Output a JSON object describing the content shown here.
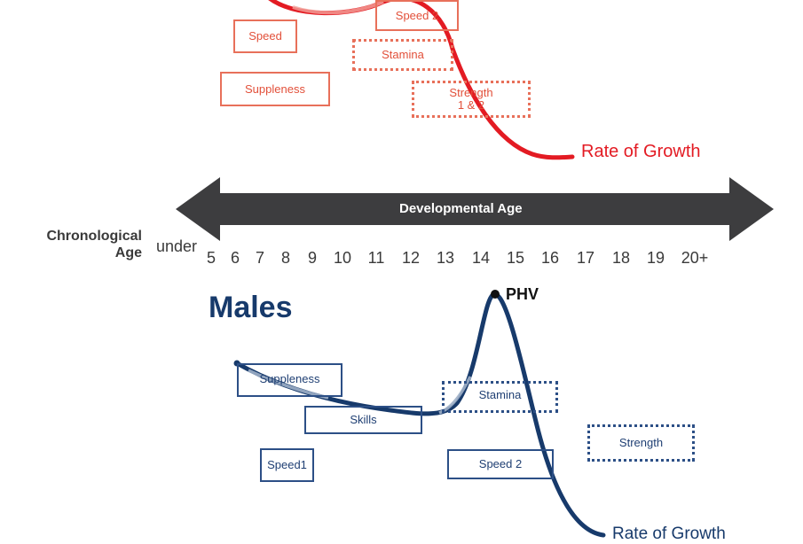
{
  "females_section": {
    "boxes": {
      "speed": "Speed",
      "speed2": "Speed 2",
      "stamina": "Stamina",
      "suppleness": "Suppleness",
      "strength": "Strength\n1 & 2"
    },
    "rate_of_growth": "Rate of Growth"
  },
  "axis": {
    "developmental_age": "Developmental Age",
    "chronological_label": "Chronological\nAge",
    "under": "under",
    "ages": [
      "5",
      "6",
      "7",
      "8",
      "9",
      "10",
      "11",
      "12",
      "13",
      "14",
      "15",
      "16",
      "17",
      "18",
      "19",
      "20+"
    ]
  },
  "males_section": {
    "title": "Males",
    "phv": "PHV",
    "boxes": {
      "suppleness": "Suppleness",
      "skills": "Skills",
      "stamina": "Stamina",
      "strength": "Strength",
      "speed1": "Speed1",
      "speed2": "Speed 2"
    },
    "rate_of_growth": "Rate of Growth"
  },
  "colors": {
    "female_curve": "#e31b23",
    "female_text": "#e2503a",
    "male_curve": "#173a6b",
    "male_text": "#1f3f73",
    "arrow": "#3d3d3f"
  }
}
